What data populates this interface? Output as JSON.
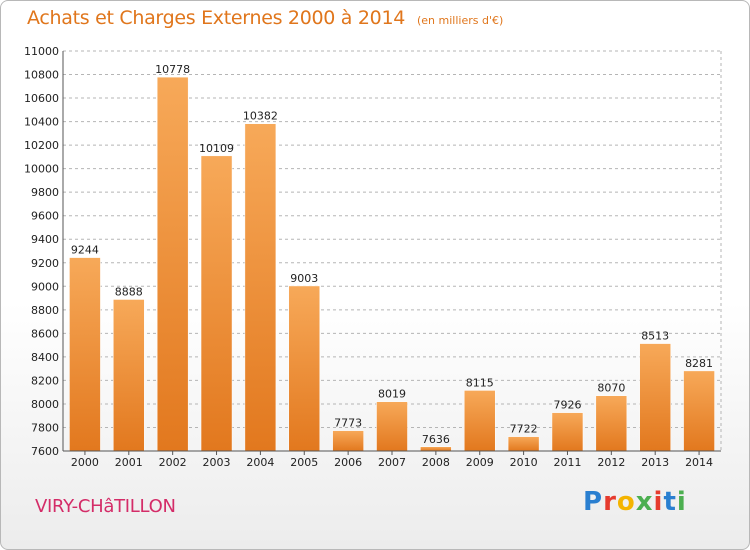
{
  "header": {
    "title": "Achats et Charges Externes 2000 à 2014",
    "subtitle": "(en milliers d'€)"
  },
  "footer": {
    "city": "VIRY-CHâTILLON",
    "logo": "Proxiti"
  },
  "colors": {
    "title": "#e0761c",
    "city": "#d42c68",
    "bar_top": "#f7a959",
    "bar_bottom": "#e2781e",
    "grid": "#b5b5b5",
    "logo_letters": [
      "#2a7fd0",
      "#e63b2e",
      "#f4b400",
      "#4caf50",
      "#e63b2e",
      "#2a7fd0",
      "#4caf50"
    ]
  },
  "chart_data": {
    "type": "bar",
    "title": "Achats et Charges Externes 2000 à 2014",
    "subtitle": "(en milliers d'€)",
    "categories": [
      "2000",
      "2001",
      "2002",
      "2003",
      "2004",
      "2005",
      "2006",
      "2007",
      "2008",
      "2009",
      "2010",
      "2011",
      "2012",
      "2013",
      "2014"
    ],
    "values": [
      9244,
      8888,
      10778,
      10109,
      10382,
      9003,
      7773,
      8019,
      7636,
      8115,
      7722,
      7926,
      8070,
      8513,
      8281
    ],
    "ylim": [
      7600,
      11000
    ],
    "yticks": [
      7600,
      7800,
      8000,
      8200,
      8400,
      8600,
      8800,
      9000,
      9200,
      9400,
      9600,
      9800,
      10000,
      10200,
      10400,
      10600,
      10800,
      11000
    ],
    "grid": true,
    "data_labels": true
  }
}
